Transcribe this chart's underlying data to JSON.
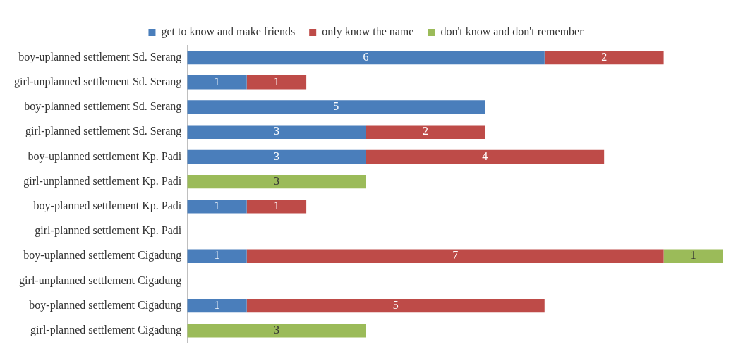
{
  "chart_data": {
    "type": "bar",
    "orientation": "horizontal",
    "stacked": true,
    "data_labels": true,
    "legend": "top",
    "grid": false,
    "categories": [
      "boy-uplanned settlement Sd. Serang",
      "girl-unplanned settlement Sd. Serang",
      "boy-planned settlement Sd. Serang",
      "girl-planned settlement Sd. Serang",
      "boy-uplanned settlement Kp. Padi",
      "girl-unplanned settlement Kp. Padi",
      "boy-planned settlement Kp. Padi",
      "girl-planned settlement Kp. Padi",
      "boy-uplanned settlement Cigadung",
      "girl-unplanned settlement Cigadung",
      "boy-planned settlement Cigadung",
      "girl-planned settlement Cigadung"
    ],
    "series": [
      {
        "name": "get to know and make friends",
        "color": "#4a7ebb",
        "values": [
          6,
          1,
          5,
          3,
          3,
          null,
          1,
          null,
          1,
          null,
          1,
          null
        ]
      },
      {
        "name": "only know the name",
        "color": "#be4b48",
        "values": [
          2,
          1,
          null,
          2,
          4,
          null,
          1,
          null,
          7,
          null,
          5,
          null
        ]
      },
      {
        "name": "don't know and don't remember",
        "color": "#9bbb59",
        "values": [
          null,
          null,
          null,
          null,
          null,
          3,
          null,
          null,
          1,
          null,
          null,
          3
        ]
      }
    ]
  }
}
